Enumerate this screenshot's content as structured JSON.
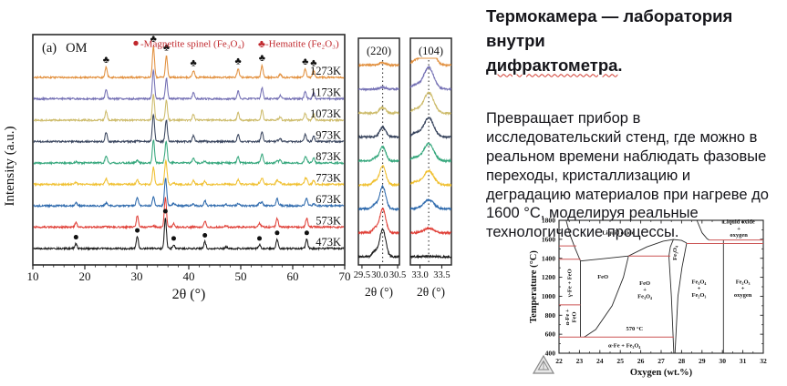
{
  "article": {
    "heading_line1": "Термокамера — лаборатория внутри",
    "heading_line2_word": "дифрактометра",
    "heading_line2_tail": ".",
    "body_lines": [
      "Превращает прибор в",
      "исследовательский стенд, где можно в",
      "реальном времени наблюдать фазовые",
      "переходы, кристаллизацию и",
      "деградацию материалов при нагреве до",
      "1600 °C, моделируя реальные",
      "технологические процессы."
    ]
  },
  "chart_data": [
    {
      "id": "xrd_main",
      "type": "line",
      "panel_tag": "(a)",
      "sample": "OM",
      "xlabel": "2θ (°)",
      "ylabel": "Intensity (a.u.)",
      "xlim": [
        10,
        70
      ],
      "xticks": [
        10,
        20,
        30,
        40,
        50,
        60,
        70
      ],
      "legend_color": "#c0282d",
      "legend": [
        {
          "symbol": "dot",
          "label": "-Magnetite spinel (Fe₃O₄)"
        },
        {
          "symbol": "club",
          "label": "-Hematite (Fe₂O₃)"
        }
      ],
      "magnetite_peaks": [
        [
          18.3,
          0.16
        ],
        [
          30.1,
          0.38
        ],
        [
          35.5,
          1.0
        ],
        [
          37.1,
          0.12
        ],
        [
          43.1,
          0.22
        ],
        [
          47.2,
          0.06
        ],
        [
          53.6,
          0.12
        ],
        [
          57.0,
          0.3
        ],
        [
          62.7,
          0.3
        ]
      ],
      "hematite_peaks": [
        [
          24.1,
          0.33
        ],
        [
          33.2,
          1.0
        ],
        [
          35.7,
          0.72
        ],
        [
          40.9,
          0.22
        ],
        [
          49.5,
          0.28
        ],
        [
          54.1,
          0.38
        ],
        [
          57.6,
          0.12
        ],
        [
          62.4,
          0.26
        ],
        [
          64.0,
          0.22
        ]
      ],
      "series": [
        {
          "name": "473K",
          "color": "#1a1a1a",
          "magnetite": 1.0,
          "hematite": 0.0
        },
        {
          "name": "573K",
          "color": "#e04038",
          "magnetite": 0.95,
          "hematite": 0.05
        },
        {
          "name": "673K",
          "color": "#2e6aad",
          "magnetite": 0.75,
          "hematite": 0.28
        },
        {
          "name": "773K",
          "color": "#f0c030",
          "magnetite": 0.45,
          "hematite": 0.55
        },
        {
          "name": "873K",
          "color": "#35a77c",
          "magnetite": 0.22,
          "hematite": 0.75
        },
        {
          "name": "973K",
          "color": "#39455e",
          "magnetite": 0.1,
          "hematite": 0.88
        },
        {
          "name": "1073K",
          "color": "#cdbb6a",
          "magnetite": 0.05,
          "hematite": 0.85
        },
        {
          "name": "1173K",
          "color": "#7470b4",
          "magnetite": 0.0,
          "hematite": 0.92
        },
        {
          "name": "1273K",
          "color": "#e2903e",
          "magnetite": 0.0,
          "hematite": 1.0
        }
      ],
      "marker_dots": {
        "series": "473K",
        "positions": [
          18.3,
          30.1,
          35.5,
          37.1,
          43.1,
          53.6,
          57.0,
          62.7
        ]
      },
      "marker_clubs": {
        "series": "1273K",
        "positions": [
          24.1,
          33.2,
          35.7,
          40.9,
          49.5,
          54.1,
          62.4,
          64.0
        ]
      }
    },
    {
      "id": "zoom_220",
      "type": "line",
      "title": "(220)",
      "xlabel": "2θ (°)",
      "xlim": [
        29.4,
        30.55
      ],
      "xticks": [
        29.5,
        30.0,
        30.5
      ],
      "tick_labels": [
        "29.5",
        "30.0",
        "30.5"
      ],
      "guide_x": 30.08,
      "peak_center": 30.08,
      "amplitudes": [
        1.0,
        0.88,
        0.82,
        0.7,
        0.52,
        0.36,
        0.2,
        0.07,
        0.1
      ]
    },
    {
      "id": "zoom_104",
      "type": "line",
      "title": "(104)",
      "xlabel": "2θ (°)",
      "xlim": [
        32.78,
        33.72
      ],
      "xticks": [
        33.0,
        33.5
      ],
      "tick_labels": [
        "33.0",
        "33.5"
      ],
      "guide_x": 33.2,
      "peak_center": 33.2,
      "amplitudes": [
        0.02,
        0.16,
        0.33,
        0.52,
        0.64,
        0.7,
        0.74,
        0.8,
        0.9
      ]
    },
    {
      "id": "phase_diagram",
      "type": "line",
      "xlabel": "Oxygen (wt.%)",
      "ylabel": "Temperature (°C)",
      "xlim": [
        22,
        32
      ],
      "ylim": [
        400,
        1800
      ],
      "xticks": [
        22,
        23,
        24,
        25,
        26,
        27,
        28,
        29,
        30,
        31,
        32
      ],
      "yticks": [
        400,
        600,
        800,
        1000,
        1200,
        1400,
        1600,
        1800
      ],
      "line_color": "#2a2a2a",
      "red_color": "#cc5555",
      "black_lines": [
        [
          [
            22.35,
            1800
          ],
          [
            22.55,
            1640
          ],
          [
            22.8,
            1500
          ],
          [
            23.05,
            1371
          ]
        ],
        [
          [
            23.05,
            1371
          ],
          [
            23.05,
            572
          ]
        ],
        [
          [
            23.05,
            1371
          ],
          [
            24.2,
            1396
          ],
          [
            25.4,
            1424
          ],
          [
            26.3,
            1520
          ],
          [
            27.1,
            1580
          ],
          [
            27.6,
            1598
          ],
          [
            28.0,
            1588
          ],
          [
            28.25,
            1560
          ]
        ],
        [
          [
            25.4,
            1424
          ],
          [
            25.15,
            1200
          ],
          [
            24.6,
            900
          ],
          [
            23.8,
            650
          ],
          [
            23.3,
            578
          ],
          [
            23.22,
            570
          ]
        ],
        [
          [
            27.62,
            400
          ],
          [
            27.5,
            1000
          ],
          [
            27.38,
            1424
          ],
          [
            27.45,
            1520
          ],
          [
            27.6,
            1598
          ]
        ],
        [
          [
            27.68,
            400
          ],
          [
            27.82,
            1000
          ],
          [
            28.02,
            1300
          ],
          [
            28.25,
            1560
          ]
        ],
        [
          [
            30.05,
            400
          ],
          [
            30.05,
            1593
          ]
        ],
        [
          [
            28.75,
            1800
          ],
          [
            29.0,
            1670
          ],
          [
            29.25,
            1605
          ],
          [
            29.35,
            1593
          ]
        ]
      ],
      "red_lines": [
        {
          "y": 1530,
          "x1": 22,
          "x2": 22.85
        },
        {
          "y": 1390,
          "x1": 22,
          "x2": 23.05
        },
        {
          "y": 1424,
          "x1": 25.4,
          "x2": 27.45
        },
        {
          "y": 910,
          "x1": 22,
          "x2": 23.05
        },
        {
          "y": 570,
          "x1": 22,
          "x2": 27.62
        },
        {
          "y": 1593,
          "x1": 29.35,
          "x2": 32
        },
        {
          "y": 1555,
          "x1": 28.25,
          "x2": 32
        }
      ],
      "region_labels": [
        {
          "lines": [
            "Liquid oxide"
          ],
          "x": 24.9,
          "y": 1650,
          "rot": 0
        },
        {
          "lines": [
            "Liquid oxide",
            "+",
            "oxygen"
          ],
          "x": 30.8,
          "y": 1765,
          "rot": 0
        },
        {
          "lines": [
            "γ-Fe + FeO"
          ],
          "x": 22.6,
          "y": 1140,
          "rot": -90
        },
        {
          "lines": [
            "FeO"
          ],
          "x": 24.15,
          "y": 1185,
          "rot": 0
        },
        {
          "lines": [
            "FeO",
            "+",
            "Fe₃O₄"
          ],
          "x": 26.2,
          "y": 1120,
          "rot": 0
        },
        {
          "lines": [
            "Fe₃O₄"
          ],
          "x": 27.75,
          "y": 1455,
          "rot": -90
        },
        {
          "lines": [
            "Fe₃O₄",
            "+",
            "Fe₂O₃"
          ],
          "x": 28.85,
          "y": 1135,
          "rot": 0
        },
        {
          "lines": [
            "Fe₂O₃",
            "+",
            "oxygen"
          ],
          "x": 31.0,
          "y": 1135,
          "rot": 0
        },
        {
          "lines": [
            "α-Fe +",
            "FeO"
          ],
          "x": 22.5,
          "y": 780,
          "rot": -90
        },
        {
          "lines": [
            "570 °C"
          ],
          "x": 25.7,
          "y": 642,
          "rot": 0
        },
        {
          "lines": [
            "α-Fe + Fe₃O₄"
          ],
          "x": 25.2,
          "y": 463,
          "rot": 0
        }
      ]
    }
  ]
}
